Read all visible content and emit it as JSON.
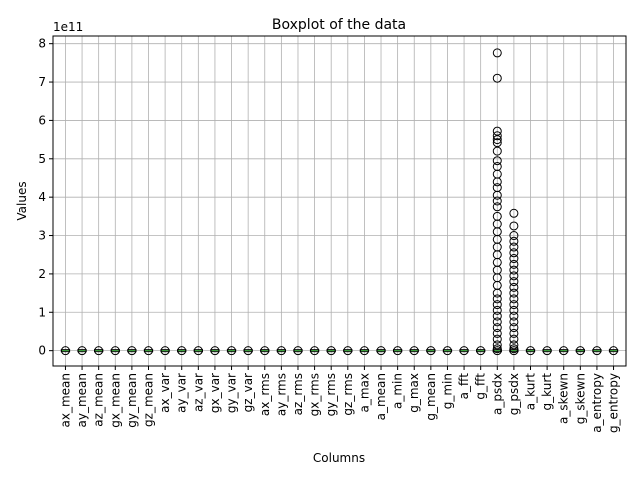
{
  "chart_data": {
    "type": "boxplot",
    "title": "Boxplot of the data",
    "xlabel": "Columns",
    "ylabel": "Values",
    "offset_label": "1e11",
    "ylim": [
      -0.4,
      8.2
    ],
    "yticks": [
      0,
      1,
      2,
      3,
      4,
      5,
      6,
      7,
      8
    ],
    "grid": true,
    "categories": [
      "ax_mean",
      "ay_mean",
      "az_mean",
      "gx_mean",
      "gy_mean",
      "gz_mean",
      "ax_var",
      "ay_var",
      "az_var",
      "gx_var",
      "gy_var",
      "gz_var",
      "ax_rms",
      "ay_rms",
      "az_rms",
      "gx_rms",
      "gy_rms",
      "gz_rms",
      "a_max",
      "a_mean",
      "a_min",
      "g_max",
      "g_mean",
      "g_min",
      "a_fft",
      "g_fft",
      "a_psdx",
      "g_psdx",
      "a_kurt",
      "g_kurt",
      "a_skewn",
      "g_skewn",
      "a_entropy",
      "g_entropy"
    ],
    "outliers": {
      "a_psdx": [
        7.76,
        7.1,
        5.72,
        5.6,
        5.5,
        5.42,
        5.2,
        4.95,
        4.8,
        4.6,
        4.4,
        4.25,
        4.05,
        3.9,
        3.75,
        3.5,
        3.3,
        3.1,
        2.9,
        2.7,
        2.5,
        2.3,
        2.1,
        1.9,
        1.7,
        1.5,
        1.35,
        1.2,
        1.05,
        0.9,
        0.75,
        0.6,
        0.45,
        0.3,
        0.15,
        0.05
      ],
      "g_psdx": [
        3.58,
        3.25,
        3.0,
        2.85,
        2.7,
        2.55,
        2.4,
        2.25,
        2.1,
        1.95,
        1.8,
        1.65,
        1.5,
        1.35,
        1.2,
        1.05,
        0.9,
        0.75,
        0.6,
        0.45,
        0.3,
        0.15,
        0.05
      ]
    },
    "colors": {
      "box": "#000000",
      "median": "#2ca02c",
      "grid": "#b0b0b0"
    }
  }
}
